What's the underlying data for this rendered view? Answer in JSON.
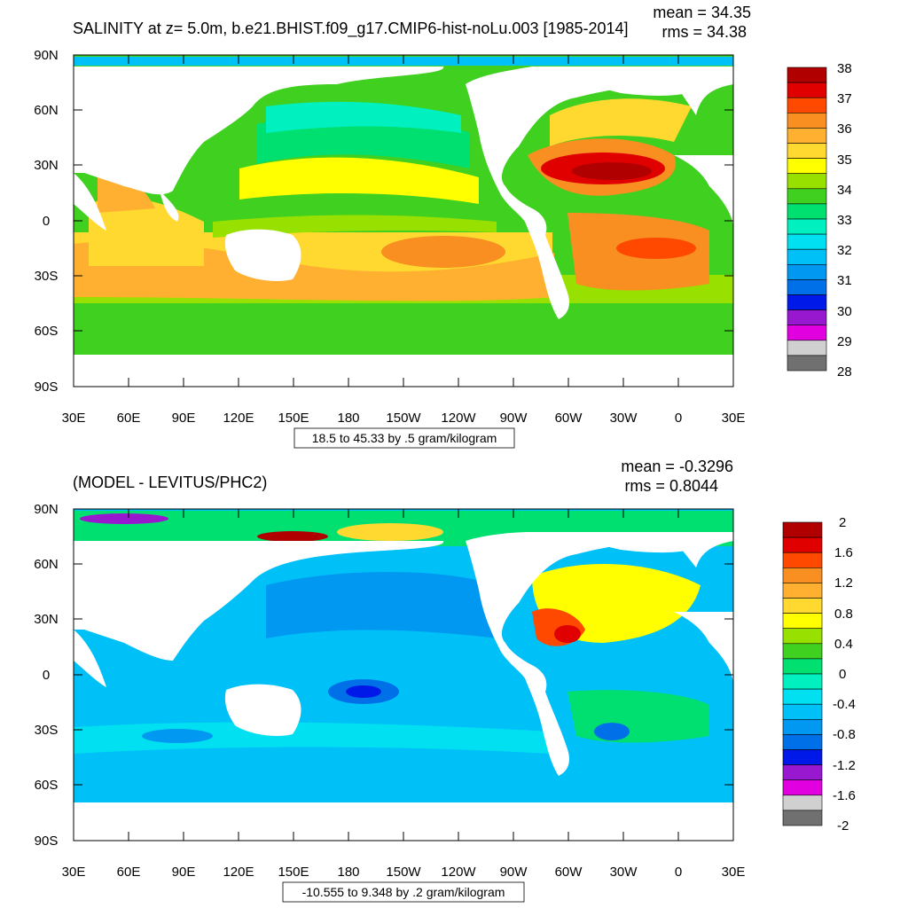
{
  "palette": [
    "#707070",
    "#d0d0d0",
    "#e000e0",
    "#9818d0",
    "#0018e8",
    "#0070e8",
    "#0098f0",
    "#00c0f8",
    "#00e0f0",
    "#00f0c0",
    "#00e070",
    "#40d020",
    "#98e000",
    "#ffff00",
    "#ffd830",
    "#ffb030",
    "#f88f20",
    "#ff4800",
    "#e00000",
    "#b00000"
  ],
  "land_color": "#ffffff",
  "panels": [
    {
      "title_left": "SALINITY at z=   5.0m, b.e21.BHIST.f09_g17.CMIP6-hist-noLu.003 [1985-2014]",
      "stat_mean": "mean = 34.35",
      "stat_rms": "rms = 34.38",
      "contour_note": "18.5 to 45.33 by .5 gram/kilogram",
      "lat_labels": [
        "90N",
        "60N",
        "30N",
        "0",
        "30S",
        "60S",
        "90S"
      ],
      "lon_labels": [
        "30E",
        "60E",
        "90E",
        "120E",
        "150E",
        "180",
        "150W",
        "120W",
        "90W",
        "60W",
        "30W",
        "0",
        "30E"
      ],
      "colorbar_labels": [
        "38",
        "37",
        "36",
        "35",
        "34",
        "33",
        "32",
        "31",
        "30",
        "29",
        "28"
      ]
    },
    {
      "title_left": "(MODEL - LEVITUS/PHC2)",
      "stat_mean": "mean = -0.3296",
      "stat_rms": "rms = 0.8044",
      "contour_note": "-10.555 to 9.348 by .2 gram/kilogram",
      "lat_labels": [
        "90N",
        "60N",
        "30N",
        "0",
        "30S",
        "60S",
        "90S"
      ],
      "lon_labels": [
        "30E",
        "60E",
        "90E",
        "120E",
        "150E",
        "180",
        "150W",
        "120W",
        "90W",
        "60W",
        "30W",
        "0",
        "30E"
      ],
      "colorbar_labels": [
        "2",
        "1.6",
        "1.2",
        "0.8",
        "0.4",
        "0",
        "-0.4",
        "-0.8",
        "-1.2",
        "-1.6",
        "-2"
      ]
    }
  ]
}
